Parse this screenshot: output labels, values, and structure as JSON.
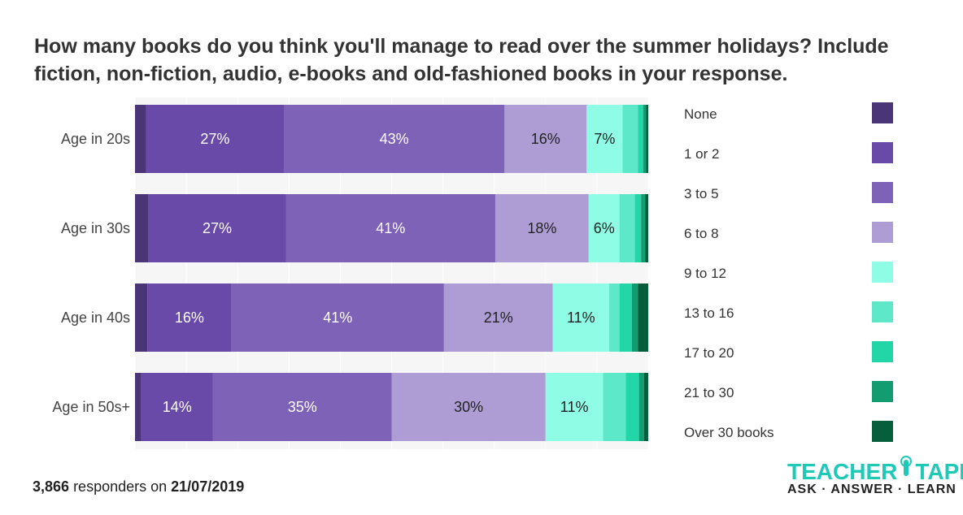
{
  "title": "How many books do you think you'll manage to read over the summer holidays? Include fiction, non-fiction, audio, e-books and old-fashioned books in your response.",
  "footer": {
    "count": "3,866",
    "text": "responders on",
    "date": "21/07/2019"
  },
  "logo": {
    "name_left": "TEACHER",
    "name_right": "TAPP",
    "tagline": "ASK · ANSWER · LEARN"
  },
  "chart_data": {
    "type": "stacked-bar-horizontal",
    "title": "How many books do you think you'll manage to read over the summer holidays? Include fiction, non-fiction, audio, e-books and old-fashioned books in your response.",
    "categories": [
      "Age in 20s",
      "Age in 30s",
      "Age in 40s",
      "Age in 50s+"
    ],
    "xlim": [
      0,
      100
    ],
    "legend_position": "right",
    "series": [
      {
        "name": "None",
        "color": "#4a3577",
        "values": [
          2.2,
          2.6,
          2.4,
          1.2
        ]
      },
      {
        "name": "1 or 2",
        "color": "#6a4aa8",
        "values": [
          26.8,
          26.8,
          16.4,
          14.0
        ]
      },
      {
        "name": "3 to 5",
        "color": "#7e62b8",
        "values": [
          43.0,
          40.8,
          41.4,
          34.8
        ]
      },
      {
        "name": "6 to 8",
        "color": "#ae9dd4",
        "values": [
          16.0,
          18.2,
          21.2,
          30.0
        ]
      },
      {
        "name": "9 to 12",
        "color": "#8ffde6",
        "values": [
          7.0,
          6.0,
          11.0,
          11.2
        ]
      },
      {
        "name": "13 to 16",
        "color": "#5de8c9",
        "values": [
          3.0,
          3.0,
          2.0,
          4.4
        ]
      },
      {
        "name": "17 to 20",
        "color": "#22d6a8",
        "values": [
          1.0,
          1.2,
          2.4,
          2.6
        ]
      },
      {
        "name": "21 to 30",
        "color": "#129c6f",
        "values": [
          0.6,
          0.8,
          1.2,
          1.0
        ]
      },
      {
        "name": "Over 30 books",
        "color": "#075e3c",
        "values": [
          0.4,
          0.6,
          2.0,
          0.8
        ]
      }
    ],
    "data_labels": [
      [
        "",
        "27%",
        "43%",
        "16%",
        "7%",
        "",
        "",
        "",
        ""
      ],
      [
        "",
        "27%",
        "41%",
        "18%",
        "6%",
        "",
        "",
        "",
        ""
      ],
      [
        "",
        "16%",
        "41%",
        "21%",
        "11%",
        "",
        "",
        "",
        ""
      ],
      [
        "",
        "14%",
        "35%",
        "30%",
        "11%",
        "",
        "",
        "",
        ""
      ]
    ]
  }
}
